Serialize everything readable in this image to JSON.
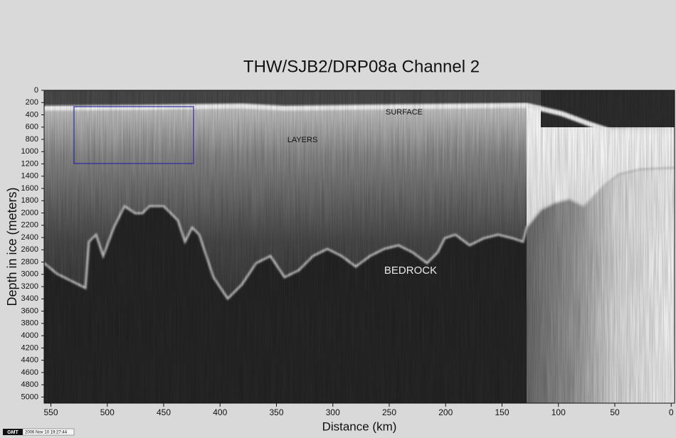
{
  "chart_data": {
    "type": "radargram",
    "title": "THW/SJB2/DRP08a Channel 2",
    "x_label": "Distance (km)",
    "y_label": "Depth in ice (meters)",
    "xlim": [
      556,
      -3
    ],
    "xticks": [
      550,
      500,
      450,
      400,
      350,
      300,
      250,
      200,
      150,
      100,
      50,
      0
    ],
    "ylim": [
      0,
      5100
    ],
    "yticks": [
      0,
      200,
      400,
      600,
      800,
      1000,
      1200,
      1400,
      1600,
      1800,
      2000,
      2200,
      2400,
      2600,
      2800,
      3000,
      3200,
      3400,
      3600,
      3800,
      4000,
      4200,
      4400,
      4600,
      4800,
      5000
    ],
    "annotations": [
      "SURFACE",
      "LAYERS",
      "BEDROCK"
    ],
    "stamp_label": "GMT",
    "stamp_time": "2006 Nov 10 19:27:44"
  }
}
